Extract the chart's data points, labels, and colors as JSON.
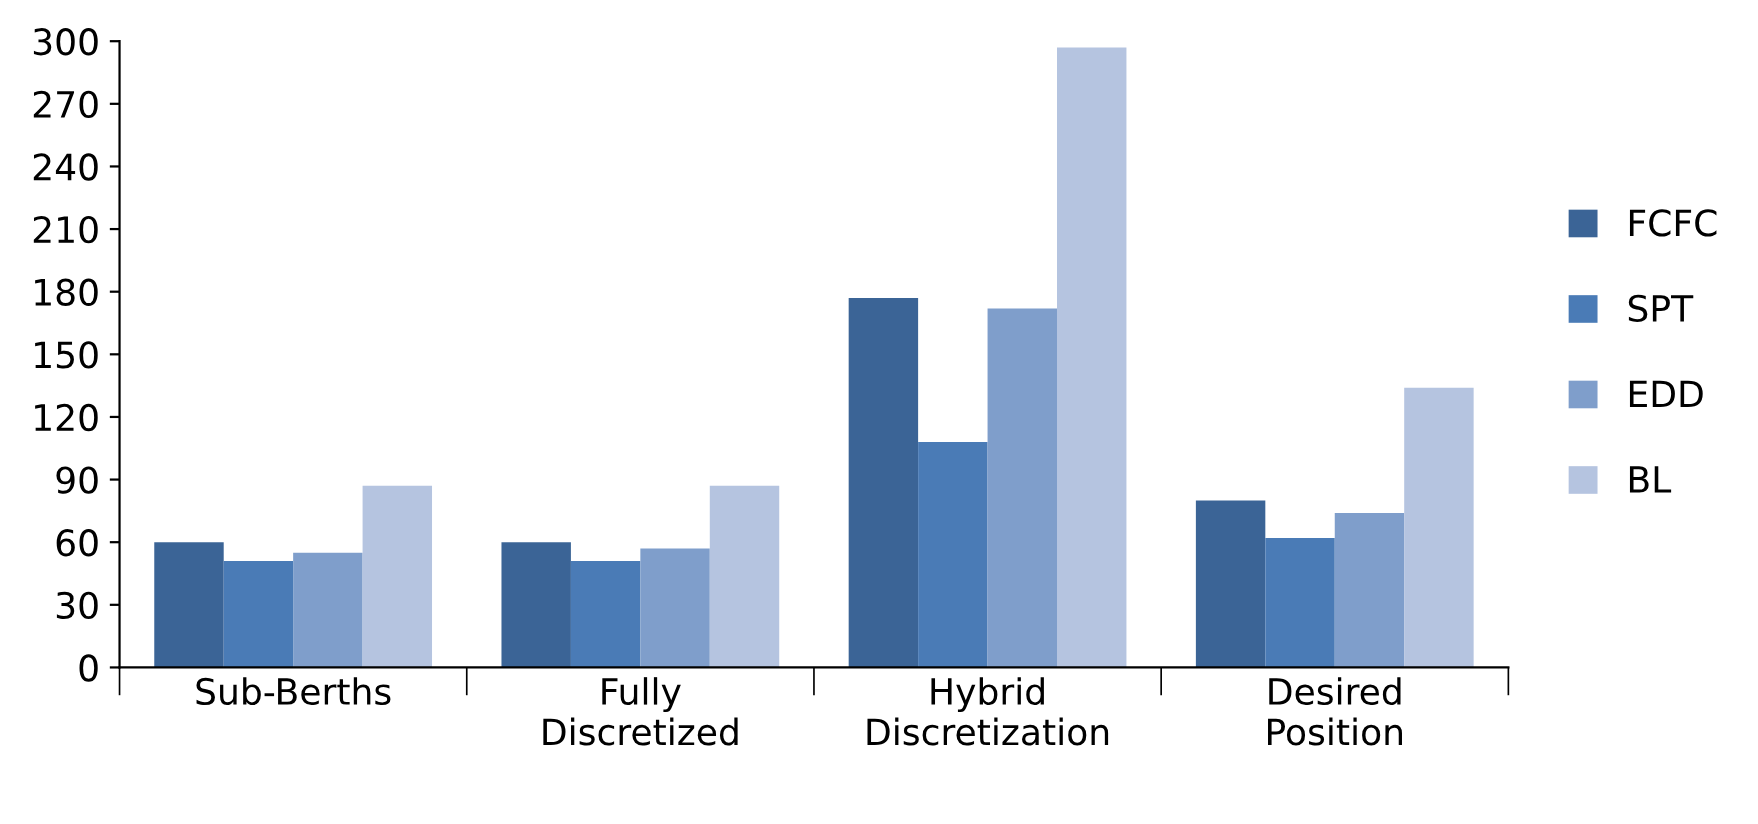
{
  "chart_data": {
    "type": "bar",
    "categories": [
      "Sub-Berths",
      "Fully\nDiscretized",
      "Hybrid\nDiscretization",
      "Desired\nPosition"
    ],
    "series": [
      {
        "name": "FCFC",
        "color": "#3b6496",
        "values": [
          60,
          60,
          177,
          80
        ]
      },
      {
        "name": "SPT",
        "color": "#4a7bb6",
        "values": [
          51,
          51,
          108,
          62
        ]
      },
      {
        "name": "EDD",
        "color": "#7f9ecb",
        "values": [
          55,
          57,
          172,
          74
        ]
      },
      {
        "name": "BL",
        "color": "#b5c4e0",
        "values": [
          87,
          87,
          297,
          134
        ]
      }
    ],
    "ylim": [
      0,
      300
    ],
    "yticks": [
      0,
      30,
      60,
      90,
      120,
      150,
      180,
      210,
      240,
      270,
      300
    ],
    "grid": false,
    "legend": "right"
  }
}
